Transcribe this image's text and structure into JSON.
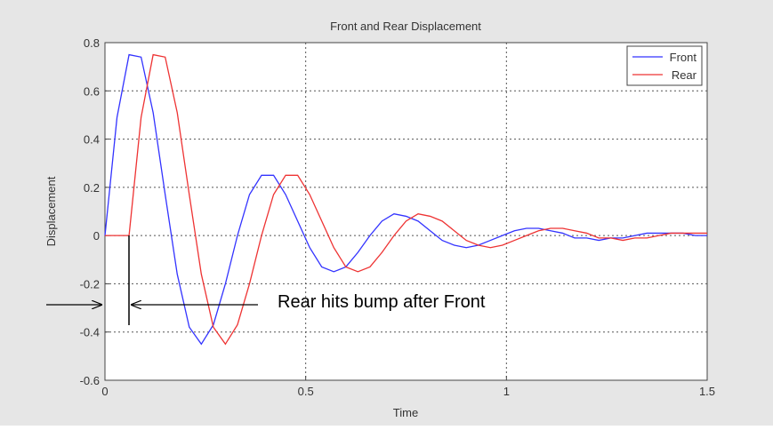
{
  "chart_data": {
    "type": "line",
    "title": "Front and Rear Displacement",
    "x_label": "Time",
    "y_label": "Displacement",
    "annotation": "Rear hits bump after Front",
    "x": [
      0,
      0.03,
      0.06,
      0.09,
      0.12,
      0.15,
      0.18,
      0.21,
      0.24,
      0.27,
      0.3,
      0.33,
      0.36,
      0.39,
      0.42,
      0.45,
      0.48,
      0.51,
      0.54,
      0.57,
      0.6,
      0.63,
      0.66,
      0.69,
      0.72,
      0.75,
      0.78,
      0.81,
      0.84,
      0.87,
      0.9,
      0.93,
      0.96,
      0.99,
      1.02,
      1.05,
      1.08,
      1.11,
      1.14,
      1.17,
      1.2,
      1.23,
      1.26,
      1.29,
      1.32,
      1.35,
      1.38,
      1.41,
      1.44,
      1.47,
      1.5
    ],
    "series": [
      {
        "name": "Front",
        "color": "#3333ff",
        "values": [
          0,
          0.49,
          0.75,
          0.74,
          0.51,
          0.17,
          -0.16,
          -0.38,
          -0.45,
          -0.37,
          -0.2,
          0,
          0.17,
          0.25,
          0.25,
          0.17,
          0.06,
          -0.05,
          -0.13,
          -0.15,
          -0.13,
          -0.07,
          0,
          0.06,
          0.09,
          0.08,
          0.06,
          0.02,
          -0.02,
          -0.04,
          -0.05,
          -0.04,
          -0.02,
          0,
          0.02,
          0.03,
          0.03,
          0.02,
          0.01,
          -0.01,
          -0.01,
          -0.02,
          -0.01,
          -0.01,
          0,
          0.01,
          0.01,
          0.01,
          0.01,
          0,
          0
        ]
      },
      {
        "name": "Rear",
        "color": "#ee3333",
        "values": [
          0,
          0,
          0,
          0.49,
          0.75,
          0.74,
          0.51,
          0.17,
          -0.16,
          -0.38,
          -0.45,
          -0.37,
          -0.2,
          0,
          0.17,
          0.25,
          0.25,
          0.17,
          0.06,
          -0.05,
          -0.13,
          -0.15,
          -0.13,
          -0.07,
          0,
          0.06,
          0.09,
          0.08,
          0.06,
          0.02,
          -0.02,
          -0.04,
          -0.05,
          -0.04,
          -0.02,
          0,
          0.02,
          0.03,
          0.03,
          0.02,
          0.01,
          -0.01,
          -0.01,
          -0.02,
          -0.01,
          -0.01,
          0,
          0.01,
          0.01,
          0.01,
          0.01
        ]
      }
    ],
    "xlim": [
      0,
      1.5
    ],
    "xticks": [
      0,
      0.5,
      1,
      1.5
    ],
    "ylim": [
      -0.6,
      0.8
    ],
    "yticks": [
      -0.6,
      -0.4,
      -0.2,
      0,
      0.2,
      0.4,
      0.6,
      0.8
    ],
    "grid": true,
    "legend": "upper right"
  }
}
